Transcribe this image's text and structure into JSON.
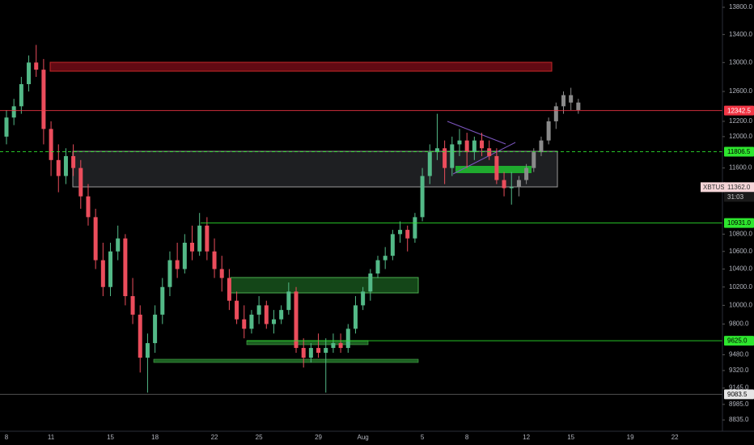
{
  "chart_data": {
    "type": "candlestick",
    "symbol": "XBTUSD",
    "last_price": {
      "value": 11362,
      "label": "11362.0"
    },
    "countdown": "31:03",
    "log_scale": true,
    "up_color": "#53b987",
    "down_color": "#eb4d5c",
    "ghost_color": "#8a8a8a",
    "ylim": [
      8728,
      13909
    ],
    "yticks": [
      {
        "value": 13800,
        "label": "13800.0"
      },
      {
        "value": 13400,
        "label": "13400.0"
      },
      {
        "value": 13000,
        "label": "13000.0"
      },
      {
        "value": 12600,
        "label": "12600.0"
      },
      {
        "value": 12200,
        "label": "12200.0"
      },
      {
        "value": 12000,
        "label": "12000.0"
      },
      {
        "value": 11600,
        "label": "11600.0"
      },
      {
        "value": 10800,
        "label": "10800.0"
      },
      {
        "value": 10600,
        "label": "10600.0"
      },
      {
        "value": 10400,
        "label": "10400.0"
      },
      {
        "value": 10200,
        "label": "10200.0"
      },
      {
        "value": 10000,
        "label": "10000.0"
      },
      {
        "value": 9800,
        "label": "9800.0"
      },
      {
        "value": 9480,
        "label": "9480.0"
      },
      {
        "value": 9320,
        "label": "9320.0"
      },
      {
        "value": 9145,
        "label": "9145.0"
      },
      {
        "value": 8985,
        "label": "8985.0"
      },
      {
        "value": 8835,
        "label": "8835.0"
      }
    ],
    "price_lines": [
      {
        "value": 12342.5,
        "label": "12342.5",
        "color": "#f23645"
      },
      {
        "value": 11806.5,
        "label": "11806.5",
        "color": "#2ee62e",
        "dashed": true
      },
      {
        "value": 10931,
        "label": "10931.0",
        "color": "#2ee62e"
      },
      {
        "value": 9625,
        "label": "9625.0",
        "color": "#2ee62e"
      },
      {
        "value": 9083.5,
        "label": "9083.5",
        "color": "#e6e6e6"
      }
    ],
    "categories": [
      "8",
      null,
      null,
      null,
      null,
      null,
      "11",
      null,
      null,
      null,
      null,
      null,
      null,
      null,
      "15",
      null,
      null,
      null,
      null,
      null,
      "18",
      null,
      null,
      null,
      null,
      null,
      null,
      null,
      "22",
      null,
      null,
      null,
      null,
      null,
      "25",
      null,
      null,
      null,
      null,
      null,
      null,
      null,
      "29",
      null,
      null,
      null,
      null,
      null,
      "Aug",
      null,
      null,
      null,
      null,
      null,
      null,
      null,
      "5",
      null,
      null,
      null,
      null,
      null,
      "8",
      null,
      null,
      null,
      null,
      null,
      null,
      null,
      "12",
      null,
      null,
      null,
      null,
      null,
      "15",
      null,
      null,
      null,
      null,
      null,
      null,
      null,
      "19",
      null,
      null,
      null,
      null,
      null,
      "22",
      null
    ],
    "ohlc": [
      [
        12000,
        12350,
        11900,
        12250
      ],
      [
        12250,
        12500,
        12150,
        12400
      ],
      [
        12400,
        12800,
        12300,
        12700
      ],
      [
        12700,
        13100,
        12600,
        13000
      ],
      [
        13000,
        13250,
        12800,
        12900
      ],
      [
        12900,
        13050,
        11900,
        12100
      ],
      [
        12100,
        12200,
        11500,
        11700
      ],
      [
        11700,
        11900,
        11300,
        11500
      ],
      [
        11500,
        11850,
        11400,
        11750
      ],
      [
        11750,
        11900,
        11500,
        11600
      ],
      [
        11600,
        11700,
        11100,
        11250
      ],
      [
        11250,
        11400,
        10900,
        11000
      ],
      [
        11000,
        11100,
        10400,
        10500
      ],
      [
        10500,
        10700,
        10100,
        10200
      ],
      [
        10200,
        10700,
        10100,
        10600
      ],
      [
        10600,
        10900,
        10500,
        10750
      ],
      [
        10750,
        10800,
        10000,
        10100
      ],
      [
        10100,
        10300,
        9800,
        9900
      ],
      [
        9900,
        10000,
        9300,
        9450
      ],
      [
        9450,
        9700,
        9100,
        9600
      ],
      [
        9600,
        10000,
        9500,
        9900
      ],
      [
        9900,
        10300,
        9800,
        10200
      ],
      [
        10200,
        10600,
        10100,
        10500
      ],
      [
        10500,
        10700,
        10300,
        10400
      ],
      [
        10400,
        10800,
        10350,
        10700
      ],
      [
        10700,
        10900,
        10500,
        10600
      ],
      [
        10600,
        11050,
        10550,
        10900
      ],
      [
        10900,
        11000,
        10500,
        10600
      ],
      [
        10600,
        10750,
        10300,
        10400
      ],
      [
        10400,
        10550,
        10150,
        10300
      ],
      [
        10300,
        10400,
        9950,
        10050
      ],
      [
        10050,
        10150,
        9800,
        9850
      ],
      [
        9850,
        10000,
        9650,
        9750
      ],
      [
        9750,
        9950,
        9700,
        9900
      ],
      [
        9900,
        10100,
        9800,
        10000
      ],
      [
        10000,
        10050,
        9750,
        9800
      ],
      [
        9800,
        9950,
        9700,
        9850
      ],
      [
        9850,
        10000,
        9800,
        9950
      ],
      [
        9950,
        10250,
        9900,
        10150
      ],
      [
        10150,
        10200,
        9500,
        9550
      ],
      [
        9550,
        9650,
        9350,
        9450
      ],
      [
        9450,
        9600,
        9400,
        9550
      ],
      [
        9550,
        9700,
        9450,
        9500
      ],
      [
        9500,
        9650,
        9100,
        9550
      ],
      [
        9550,
        9700,
        9500,
        9600
      ],
      [
        9600,
        9700,
        9500,
        9550
      ],
      [
        9550,
        9800,
        9500,
        9750
      ],
      [
        9750,
        10100,
        9700,
        10000
      ],
      [
        10000,
        10200,
        9950,
        10150
      ],
      [
        10150,
        10400,
        10050,
        10350
      ],
      [
        10350,
        10550,
        10300,
        10500
      ],
      [
        10500,
        10650,
        10400,
        10550
      ],
      [
        10550,
        10850,
        10500,
        10800
      ],
      [
        10800,
        10950,
        10700,
        10850
      ],
      [
        10850,
        10900,
        10600,
        10750
      ],
      [
        10750,
        11050,
        10700,
        11000
      ],
      [
        11000,
        11600,
        10950,
        11500
      ],
      [
        11500,
        11900,
        11400,
        11800
      ],
      [
        11800,
        12300,
        11700,
        11850
      ],
      [
        11850,
        11950,
        11400,
        11600
      ],
      [
        11600,
        12000,
        11500,
        11900
      ],
      [
        11900,
        12100,
        11750,
        11950
      ],
      [
        11950,
        12050,
        11600,
        11800
      ],
      [
        11800,
        12000,
        11700,
        11950
      ],
      [
        11950,
        12050,
        11750,
        11850
      ],
      [
        11850,
        11950,
        11700,
        11750
      ],
      [
        11750,
        11850,
        11400,
        11450
      ],
      [
        11450,
        11550,
        11250,
        11350
      ],
      [
        11350,
        11550,
        11150,
        11362
      ],
      null,
      null,
      null,
      null,
      null,
      null,
      null,
      null,
      null,
      null,
      null,
      null,
      null,
      null,
      null,
      null,
      null,
      null,
      null,
      null,
      null,
      null,
      null
    ],
    "ghost_ohlc": [
      null,
      null,
      null,
      null,
      null,
      null,
      null,
      null,
      null,
      null,
      null,
      null,
      null,
      null,
      null,
      null,
      null,
      null,
      null,
      null,
      null,
      null,
      null,
      null,
      null,
      null,
      null,
      null,
      null,
      null,
      null,
      null,
      null,
      null,
      null,
      null,
      null,
      null,
      null,
      null,
      null,
      null,
      null,
      null,
      null,
      null,
      null,
      null,
      null,
      null,
      null,
      null,
      null,
      null,
      null,
      null,
      null,
      null,
      null,
      null,
      null,
      null,
      null,
      null,
      null,
      null,
      null,
      null,
      null,
      [
        11362,
        11500,
        11250,
        11450
      ],
      [
        11450,
        11650,
        11400,
        11600
      ],
      [
        11600,
        11850,
        11550,
        11800
      ],
      [
        11800,
        12000,
        11750,
        11950
      ],
      [
        11950,
        12250,
        11900,
        12200
      ],
      [
        12200,
        12450,
        12100,
        12400
      ],
      [
        12400,
        12600,
        12300,
        12550
      ],
      [
        12550,
        12650,
        12350,
        12450
      ],
      [
        12450,
        12500,
        12300,
        12350
      ],
      null,
      null,
      null,
      null,
      null,
      null,
      null,
      null,
      null,
      null,
      null,
      null,
      null,
      null
    ]
  }
}
